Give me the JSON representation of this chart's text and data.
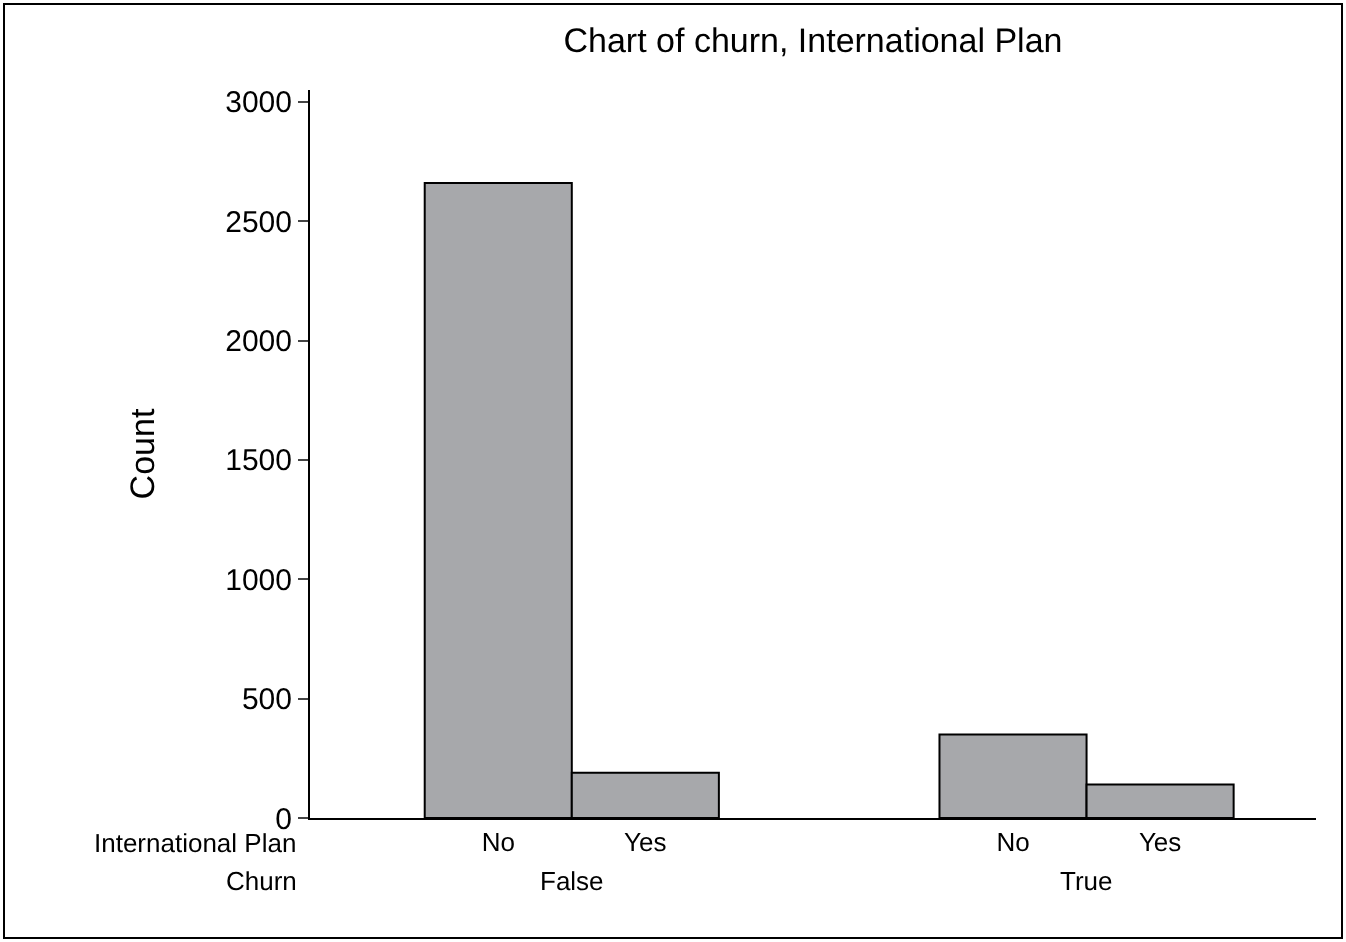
{
  "chart_data": {
    "type": "bar",
    "title": "Chart of churn, International Plan",
    "ylabel": "Count",
    "categories": [
      "No",
      "Yes",
      "No",
      "Yes"
    ],
    "values": [
      2660,
      190,
      350,
      140
    ],
    "color": "#a7a8ab",
    "ylim": [
      0,
      3050
    ],
    "yticks": [
      0,
      500,
      1000,
      1500,
      2000,
      2500,
      3000
    ],
    "legend": false,
    "annotations": [
      "International Plan",
      "Churn",
      "False",
      "True"
    ]
  }
}
